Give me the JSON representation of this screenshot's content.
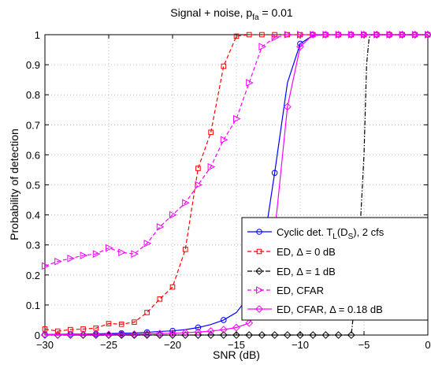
{
  "chart_data": {
    "type": "line",
    "title": "Signal + noise, p",
    "title_sub": "fa",
    "title_suffix": " = 0.01",
    "xlabel": "SNR (dB)",
    "ylabel": "Probability of detection",
    "xlim": [
      -30,
      0
    ],
    "ylim": [
      0,
      1
    ],
    "xticks": [
      -30,
      -25,
      -20,
      -15,
      -10,
      -5,
      0
    ],
    "xtick_labels": [
      "−30",
      "−25",
      "−20",
      "−15",
      "−10",
      "−5",
      "0"
    ],
    "yticks": [
      0,
      0.1,
      0.2,
      0.3,
      0.4,
      0.5,
      0.6,
      0.7,
      0.8,
      0.9,
      1
    ],
    "ytick_labels": [
      "0",
      "0.1",
      "0.2",
      "0.3",
      "0.4",
      "0.5",
      "0.6",
      "0.7",
      "0.8",
      "0.9",
      "1"
    ],
    "grid": true,
    "legend_position": "bottom-right",
    "series": [
      {
        "label_parts": [
          "Cyclic det. T",
          "L",
          "(D",
          "S",
          "), 2 cfs"
        ],
        "color": "#0000ff",
        "dash": "solid",
        "marker": "circle",
        "marker_step": 2,
        "x": [
          -30,
          -29,
          -28,
          -27,
          -26,
          -25,
          -24,
          -23,
          -22,
          -21,
          -20,
          -19,
          -18,
          -17,
          -16,
          -15,
          -14,
          -13,
          -12,
          -11,
          -10,
          -9,
          -8,
          -7,
          -6,
          -5,
          -4,
          -3,
          -2,
          -1,
          0
        ],
        "y": [
          0.002,
          0.002,
          0.003,
          0.003,
          0.004,
          0.005,
          0.006,
          0.007,
          0.009,
          0.012,
          0.014,
          0.018,
          0.025,
          0.035,
          0.05,
          0.075,
          0.13,
          0.26,
          0.54,
          0.84,
          0.97,
          0.998,
          1,
          1,
          1,
          1,
          1,
          1,
          1,
          1,
          1
        ]
      },
      {
        "label_parts": [
          "ED, Δ = 0 dB"
        ],
        "color": "#ff0000",
        "dash": "5,3",
        "marker": "square",
        "marker_step": 1,
        "x": [
          -30,
          -29,
          -28,
          -27,
          -26,
          -25,
          -24,
          -23,
          -22,
          -21,
          -20,
          -19,
          -18,
          -17,
          -16,
          -15,
          -14,
          -13,
          -12,
          -11,
          -10,
          -9,
          -8,
          -7,
          -6,
          -5,
          -4,
          -3,
          -2,
          -1,
          0
        ],
        "y": [
          0.02,
          0.013,
          0.018,
          0.02,
          0.023,
          0.038,
          0.036,
          0.043,
          0.075,
          0.12,
          0.16,
          0.285,
          0.555,
          0.675,
          0.895,
          0.995,
          1,
          1,
          1,
          1,
          1,
          1,
          1,
          1,
          1,
          1,
          1,
          1,
          1,
          1,
          1
        ]
      },
      {
        "label_parts": [
          "ED, Δ = 1 dB"
        ],
        "color": "#000000",
        "dash": "6,2,1.5,2",
        "marker": "diamond",
        "marker_step": 1,
        "x": [
          -30,
          -29,
          -28,
          -27,
          -26,
          -25,
          -24,
          -23,
          -22,
          -21,
          -20,
          -19,
          -18,
          -17,
          -16,
          -15,
          -14,
          -13,
          -12,
          -11,
          -10,
          -9,
          -8,
          -7,
          -6,
          -5.5,
          -5,
          -4.8,
          -4.6,
          -4.4,
          -4,
          -3,
          -2,
          -1,
          0
        ],
        "y": [
          0,
          0,
          0,
          0,
          0,
          0,
          0,
          0,
          0,
          0,
          0,
          0,
          0,
          0,
          0,
          0,
          0,
          0,
          0,
          0,
          0,
          0,
          0,
          0,
          0,
          0.2,
          0.6,
          0.9,
          0.99,
          1,
          1,
          1,
          1,
          1,
          1
        ],
        "marker_x": [
          -30,
          -29,
          -28,
          -27,
          -26,
          -25,
          -24,
          -23,
          -22,
          -21,
          -20,
          -19,
          -18,
          -17,
          -16,
          -15,
          -14,
          -13,
          -12,
          -11,
          -10,
          -9,
          -8,
          -7,
          -6,
          -4,
          -3,
          -2,
          -1,
          0
        ]
      },
      {
        "label_parts": [
          "ED, CFAR"
        ],
        "color": "#ff00ff",
        "dash": "5,3",
        "marker": "triangle-right",
        "marker_step": 1,
        "x": [
          -30,
          -29,
          -28,
          -27,
          -26,
          -25,
          -24,
          -23,
          -22,
          -21,
          -20,
          -19,
          -18,
          -17,
          -16,
          -15,
          -14,
          -13,
          -12,
          -11,
          -10,
          -9,
          -8,
          -7,
          -6,
          -5,
          -4,
          -3,
          -2,
          -1,
          0
        ],
        "y": [
          0.23,
          0.245,
          0.255,
          0.265,
          0.27,
          0.29,
          0.275,
          0.27,
          0.305,
          0.36,
          0.4,
          0.44,
          0.5,
          0.56,
          0.65,
          0.72,
          0.84,
          0.96,
          0.99,
          1,
          1,
          1,
          1,
          1,
          1,
          1,
          1,
          1,
          1,
          1,
          1
        ]
      },
      {
        "label_parts": [
          "ED, CFAR, Δ = 0.18 dB"
        ],
        "color": "#ff00ff",
        "dash": "solid",
        "marker": "diamond",
        "marker_step": 1,
        "x": [
          -30,
          -29,
          -28,
          -27,
          -26,
          -25,
          -24,
          -23,
          -22,
          -21,
          -20,
          -19,
          -18,
          -17,
          -16,
          -15,
          -14,
          -13,
          -12,
          -11,
          -10,
          -9,
          -8,
          -7,
          -6,
          -5,
          -4,
          -3,
          -2,
          -1,
          0
        ],
        "y": [
          0.001,
          0.001,
          0.001,
          0.002,
          0.002,
          0.002,
          0.003,
          0.003,
          0.004,
          0.005,
          0.006,
          0.008,
          0.01,
          0.013,
          0.018,
          0.025,
          0.04,
          0.1,
          0.34,
          0.76,
          0.96,
          1,
          1,
          1,
          1,
          1,
          1,
          1,
          1,
          1,
          1
        ]
      }
    ]
  }
}
